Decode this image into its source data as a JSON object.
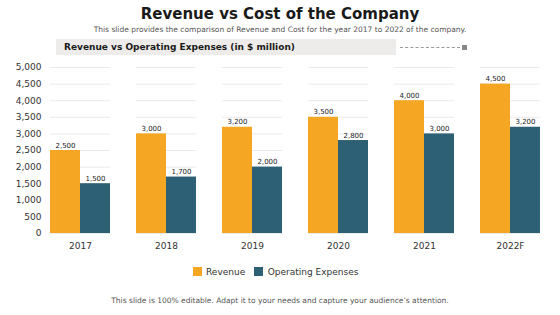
{
  "chart_data": {
    "type": "bar",
    "title": "Revenue vs Cost of the Company",
    "subtitle": "This slide provides the comparison of Revenue  and Cost for the year 2017 to 2022 of the company.",
    "annotations": [
      "Revenue vs Operating Expenses (in $ million)",
      "This slide is 100% editable. Adapt it to your needs and capture your audience’s attention."
    ],
    "categories": [
      "2017",
      "2018",
      "2019",
      "2020",
      "2021",
      "2022F"
    ],
    "series": [
      {
        "name": "Revenue",
        "color": "#F5A623",
        "values": [
          2500,
          3000,
          3200,
          3500,
          4000,
          4500
        ],
        "value_labels": [
          "2,500",
          "3,000",
          "3,200",
          "3,500",
          "4,000",
          "4,500"
        ]
      },
      {
        "name": "Operating Expenses",
        "color": "#2E6075",
        "values": [
          1500,
          1700,
          2000,
          2800,
          3000,
          3200
        ],
        "value_labels": [
          "1,500",
          "1,700",
          "2,000",
          "2,800",
          "3,000",
          "3,200"
        ]
      }
    ],
    "ylim": [
      0,
      5000
    ],
    "yticks": [
      0,
      500,
      {
        "value": 1000,
        "label": "1,000"
      },
      {
        "value": 1500,
        "label": "1,500"
      },
      {
        "value": 2000,
        "label": "2,000"
      },
      {
        "value": 2500,
        "label": "2,500"
      },
      {
        "value": 3000,
        "label": "3,000"
      },
      {
        "value": 3500,
        "label": "3,500"
      },
      {
        "value": 4000,
        "label": "4,000"
      },
      {
        "value": 4500,
        "label": "4,500"
      },
      {
        "value": 5000,
        "label": "5,000"
      }
    ],
    "grid": true,
    "legend": "bottom",
    "data_labels": true
  }
}
